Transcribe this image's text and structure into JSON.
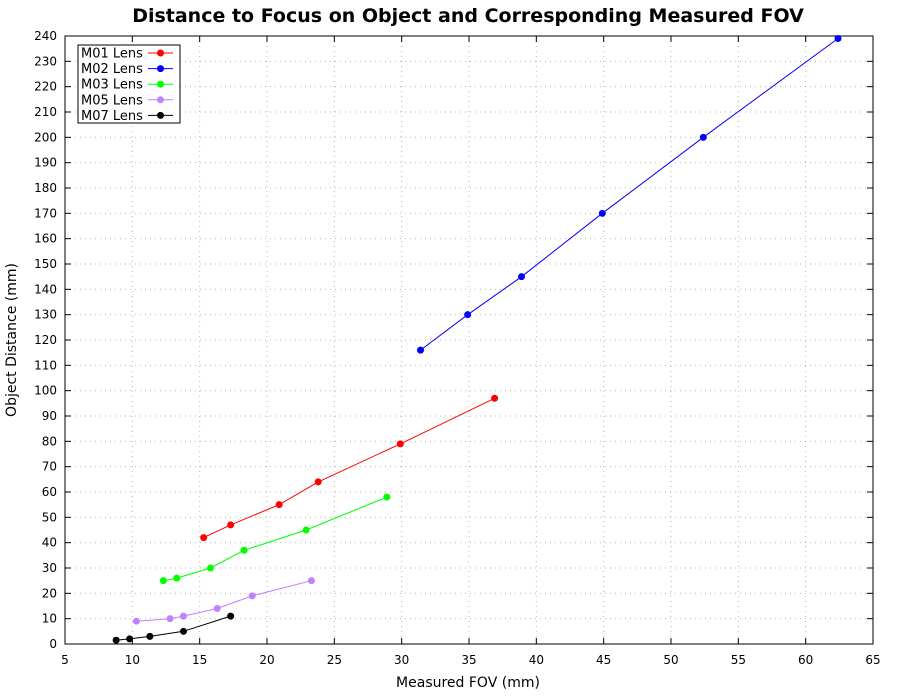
{
  "chart_data": {
    "type": "line",
    "title": "Distance to Focus on Object and Corresponding Measured FOV",
    "xlabel": "Measured FOV (mm)",
    "ylabel": "Object Distance (mm)",
    "xlim": [
      5,
      65
    ],
    "ylim": [
      0,
      240
    ],
    "xticks": [
      5,
      10,
      15,
      20,
      25,
      30,
      35,
      40,
      45,
      50,
      55,
      60,
      65
    ],
    "yticks": [
      0,
      10,
      20,
      30,
      40,
      50,
      60,
      70,
      80,
      90,
      100,
      110,
      120,
      130,
      140,
      150,
      160,
      170,
      180,
      190,
      200,
      210,
      220,
      230,
      240
    ],
    "grid": true,
    "legend_position": "top-left",
    "series": [
      {
        "name": "M01 Lens",
        "color": "#ff0000",
        "x": [
          15.3,
          17.3,
          20.9,
          23.8,
          29.9,
          36.9
        ],
        "y": [
          42,
          47,
          55,
          64,
          79,
          97
        ]
      },
      {
        "name": "M02 Lens",
        "color": "#0000ff",
        "x": [
          31.4,
          34.9,
          38.9,
          44.9,
          52.4,
          62.4
        ],
        "y": [
          116,
          130,
          145,
          170,
          200,
          239
        ]
      },
      {
        "name": "M03 Lens",
        "color": "#00ff00",
        "x": [
          12.3,
          13.3,
          15.8,
          18.3,
          22.9,
          28.9
        ],
        "y": [
          25,
          26,
          30,
          37,
          45,
          58
        ]
      },
      {
        "name": "M05 Lens",
        "color": "#c080ff",
        "x": [
          10.3,
          12.8,
          13.8,
          16.3,
          18.9,
          23.3
        ],
        "y": [
          9,
          10,
          11,
          14,
          19,
          25
        ]
      },
      {
        "name": "M07 Lens",
        "color": "#000000",
        "x": [
          8.8,
          9.8,
          11.3,
          13.8,
          17.3
        ],
        "y": [
          1.5,
          2,
          3,
          5,
          11
        ]
      }
    ]
  }
}
